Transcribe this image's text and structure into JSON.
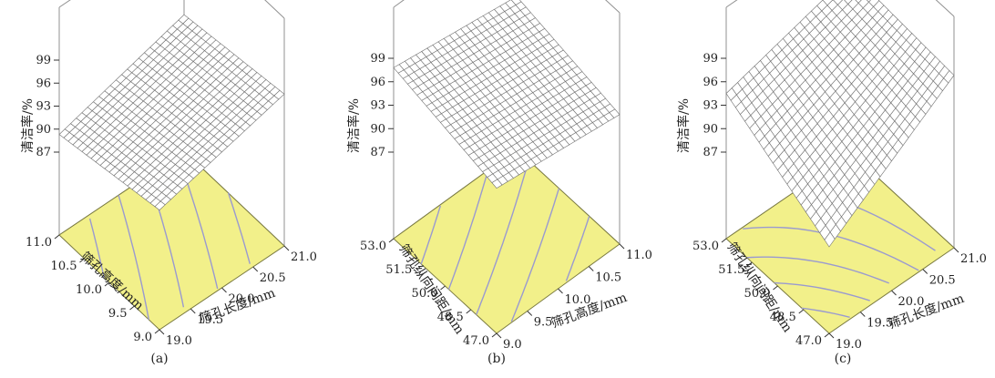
{
  "chart_data": [
    {
      "type": "surface",
      "caption": "(a)",
      "zlabel": "清洁率/%",
      "z_ticks": [
        "99",
        "96",
        "93",
        "90",
        "87"
      ],
      "xlabel": "筛孔长度/mm",
      "x_ticks": [
        "19.0",
        "19.5",
        "20.0",
        "20.5",
        "21.0"
      ],
      "ylabel": "筛孔高度/mm",
      "y_ticks": [
        "9.0",
        "9.5",
        "10.0",
        "10.5",
        "11.0"
      ],
      "xlim": [
        19.0,
        21.0
      ],
      "ylim": [
        9.0,
        11.0
      ],
      "zlim": [
        87,
        99
      ],
      "corner_values": {
        "x_min_y_min": 91.8,
        "x_max_y_min": 96.0,
        "x_min_y_max": 89.3,
        "x_max_y_max": 94.0
      }
    },
    {
      "type": "surface",
      "caption": "(b)",
      "zlabel": "清洁率/%",
      "z_ticks": [
        "99",
        "96",
        "93",
        "90",
        "87"
      ],
      "xlabel": "筛孔高度/mm",
      "x_ticks": [
        "9.0",
        "9.5",
        "10.0",
        "10.5",
        "11.0"
      ],
      "ylabel": "筛孔纵向间距/mm",
      "y_ticks": [
        "47.0",
        "48.5",
        "50.0",
        "51.5",
        "53.0"
      ],
      "xlim": [
        9.0,
        11.0
      ],
      "ylim": [
        47.0,
        53.0
      ],
      "zlim": [
        87,
        99
      ],
      "corner_values": {
        "x_min_y_min": 94.5,
        "x_max_y_min": 92.5,
        "x_min_y_max": 97.8,
        "x_max_y_max": 95.5
      }
    },
    {
      "type": "surface",
      "caption": "(c)",
      "zlabel": "清洁率/%",
      "z_ticks": [
        "99",
        "96",
        "93",
        "90",
        "87"
      ],
      "xlabel": "筛孔长度/mm",
      "x_ticks": [
        "19.0",
        "19.5",
        "20.0",
        "20.5",
        "21.0"
      ],
      "ylabel": "筛孔纵向间距/mm",
      "y_ticks": [
        "47.0",
        "48.5",
        "50.0",
        "51.5",
        "53.0"
      ],
      "xlim": [
        19.0,
        21.0
      ],
      "ylim": [
        47.0,
        53.0
      ],
      "zlim": [
        87,
        99
      ],
      "corner_values": {
        "x_min_y_min": 87.0,
        "x_max_y_min": 98.0,
        "x_min_y_max": 94.5,
        "x_max_y_max": 99.0
      }
    }
  ],
  "colors": {
    "floor_fill": "#f2f08a",
    "floor_edge": "#7a7a40",
    "contour": "#9a9ad0",
    "mesh_stroke": "#6f6f6f",
    "mesh_fill": "#ffffff",
    "box_line": "#909090"
  }
}
